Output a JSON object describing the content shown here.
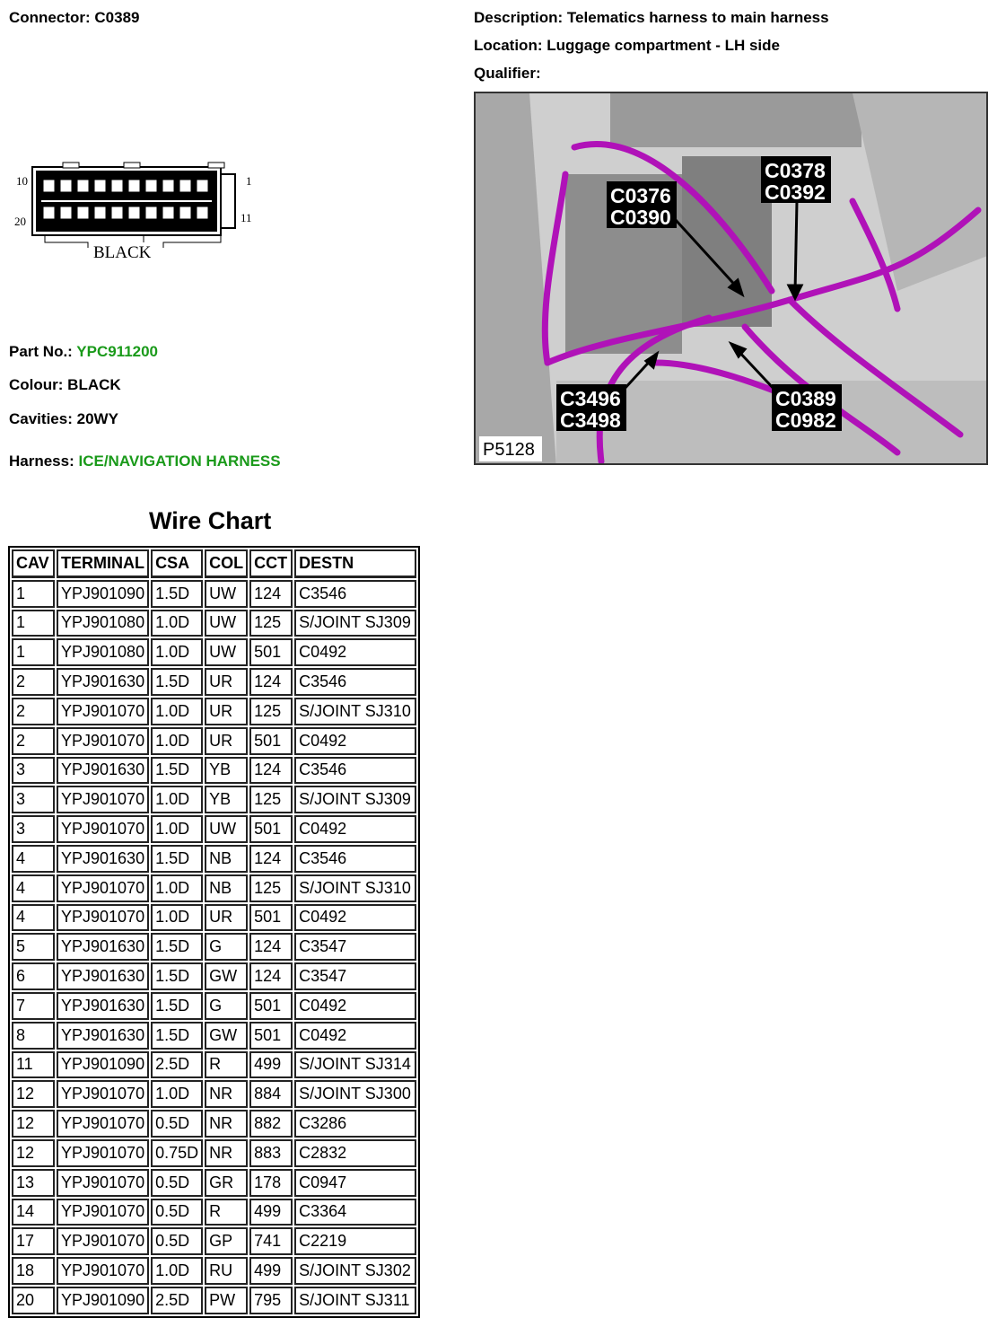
{
  "header": {
    "connector_label": "Connector:",
    "connector": "C0389",
    "description_label": "Description:",
    "description": "Telematics harness to main harness",
    "location_label": "Location:",
    "location": "Luggage compartment - LH side",
    "qualifier_label": "Qualifier:",
    "qualifier": ""
  },
  "connector_drawing": {
    "pin_labels": [
      "10",
      "1",
      "20",
      "11"
    ],
    "colour_text": "BLACK"
  },
  "details": {
    "part_label": "Part No.:",
    "part": "YPC911200",
    "colour_label": "Colour:",
    "colour": "BLACK",
    "cavities_label": "Cavities:",
    "cavities": "20WY",
    "harness_label": "Harness:",
    "harness": "ICE/NAVIGATION HARNESS"
  },
  "photo": {
    "figure_id": "P5128",
    "callouts": [
      "C0376",
      "C0390",
      "C0378",
      "C0392",
      "C3496",
      "C3498",
      "C0389",
      "C0982"
    ],
    "wire_color": "#b012b8"
  },
  "colors": {
    "green_value": "#1a9a1a"
  },
  "wire_chart": {
    "title": "Wire Chart",
    "columns": [
      "CAV",
      "TERMINAL",
      "CSA",
      "COL",
      "CCT",
      "DESTN"
    ],
    "rows": [
      [
        "1",
        "YPJ901090",
        "1.5D",
        "UW",
        "124",
        "C3546"
      ],
      [
        "1",
        "YPJ901080",
        "1.0D",
        "UW",
        "125",
        "S/JOINT SJ309"
      ],
      [
        "1",
        "YPJ901080",
        "1.0D",
        "UW",
        "501",
        "C0492"
      ],
      [
        "2",
        "YPJ901630",
        "1.5D",
        "UR",
        "124",
        "C3546"
      ],
      [
        "2",
        "YPJ901070",
        "1.0D",
        "UR",
        "125",
        "S/JOINT SJ310"
      ],
      [
        "2",
        "YPJ901070",
        "1.0D",
        "UR",
        "501",
        "C0492"
      ],
      [
        "3",
        "YPJ901630",
        "1.5D",
        "YB",
        "124",
        "C3546"
      ],
      [
        "3",
        "YPJ901070",
        "1.0D",
        "YB",
        "125",
        "S/JOINT SJ309"
      ],
      [
        "3",
        "YPJ901070",
        "1.0D",
        "UW",
        "501",
        "C0492"
      ],
      [
        "4",
        "YPJ901630",
        "1.5D",
        "NB",
        "124",
        "C3546"
      ],
      [
        "4",
        "YPJ901070",
        "1.0D",
        "NB",
        "125",
        "S/JOINT SJ310"
      ],
      [
        "4",
        "YPJ901070",
        "1.0D",
        "UR",
        "501",
        "C0492"
      ],
      [
        "5",
        "YPJ901630",
        "1.5D",
        "G",
        "124",
        "C3547"
      ],
      [
        "6",
        "YPJ901630",
        "1.5D",
        "GW",
        "124",
        "C3547"
      ],
      [
        "7",
        "YPJ901630",
        "1.5D",
        "G",
        "501",
        "C0492"
      ],
      [
        "8",
        "YPJ901630",
        "1.5D",
        "GW",
        "501",
        "C0492"
      ],
      [
        "11",
        "YPJ901090",
        "2.5D",
        "R",
        "499",
        "S/JOINT SJ314"
      ],
      [
        "12",
        "YPJ901070",
        "1.0D",
        "NR",
        "884",
        "S/JOINT SJ300"
      ],
      [
        "12",
        "YPJ901070",
        "0.5D",
        "NR",
        "882",
        "C3286"
      ],
      [
        "12",
        "YPJ901070",
        "0.75D",
        "NR",
        "883",
        "C2832"
      ],
      [
        "13",
        "YPJ901070",
        "0.5D",
        "GR",
        "178",
        "C0947"
      ],
      [
        "14",
        "YPJ901070",
        "0.5D",
        "R",
        "499",
        "C3364"
      ],
      [
        "17",
        "YPJ901070",
        "0.5D",
        "GP",
        "741",
        "C2219"
      ],
      [
        "18",
        "YPJ901070",
        "1.0D",
        "RU",
        "499",
        "S/JOINT SJ302"
      ],
      [
        "20",
        "YPJ901090",
        "2.5D",
        "PW",
        "795",
        "S/JOINT SJ311"
      ]
    ]
  }
}
